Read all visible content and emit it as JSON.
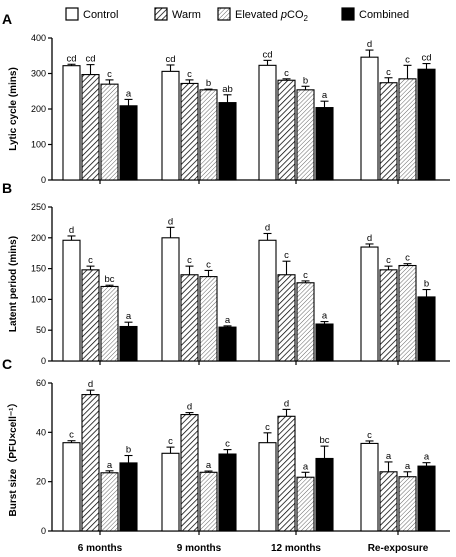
{
  "chart_data": [
    {
      "type": "bar",
      "panel": "A",
      "ylabel": "Lytic cycle (mins)",
      "ylim": [
        0,
        400
      ],
      "yticks": [
        "0",
        "100",
        "200",
        "300",
        "400"
      ],
      "categories": [
        "6 months",
        "9 months",
        "12 months",
        "Re-exposure"
      ],
      "series": [
        {
          "name": "Control",
          "values": [
            322,
            306,
            323,
            346
          ],
          "errors": [
            4,
            18,
            14,
            20
          ],
          "letters": [
            "cd",
            "cd",
            "cd",
            "d"
          ]
        },
        {
          "name": "Warm",
          "values": [
            297,
            272,
            281,
            274
          ],
          "errors": [
            28,
            10,
            4,
            14
          ],
          "letters": [
            "cd",
            "c",
            "c",
            "c"
          ]
        },
        {
          "name": "Elevated pCO2",
          "values": [
            270,
            254,
            254,
            285
          ],
          "errors": [
            12,
            2,
            10,
            38
          ],
          "letters": [
            "c",
            "b",
            "b",
            "c"
          ]
        },
        {
          "name": "Combined",
          "values": [
            209,
            218,
            204,
            312
          ],
          "errors": [
            18,
            22,
            18,
            16
          ],
          "letters": [
            "a",
            "ab",
            "a",
            "cd"
          ]
        }
      ]
    },
    {
      "type": "bar",
      "panel": "B",
      "ylabel": "Latent period (mins)",
      "ylim": [
        0,
        250
      ],
      "yticks": [
        "0",
        "50",
        "100",
        "150",
        "200",
        "250"
      ],
      "categories": [
        "6 months",
        "9 months",
        "12 months",
        "Re-exposure"
      ],
      "series": [
        {
          "name": "Control",
          "values": [
            196,
            200,
            196,
            185
          ],
          "errors": [
            7,
            17,
            11,
            5
          ],
          "letters": [
            "d",
            "d",
            "d",
            "d"
          ]
        },
        {
          "name": "Warm",
          "values": [
            148,
            140,
            140,
            148
          ],
          "errors": [
            6,
            14,
            22,
            6
          ],
          "letters": [
            "c",
            "c",
            "c",
            "c"
          ]
        },
        {
          "name": "Elevated pCO2",
          "values": [
            121,
            137,
            127,
            155
          ],
          "errors": [
            2,
            10,
            3,
            3
          ],
          "letters": [
            "bc",
            "c",
            "c",
            "c"
          ]
        },
        {
          "name": "Combined",
          "values": [
            56,
            55,
            60,
            104
          ],
          "errors": [
            7,
            2,
            4,
            12
          ],
          "letters": [
            "a",
            "a",
            "a",
            "b"
          ]
        }
      ]
    },
    {
      "type": "bar",
      "panel": "C",
      "ylabel": "Burst size（PFU×cell⁻¹）",
      "ylim": [
        0,
        60
      ],
      "yticks": [
        "0",
        "20",
        "40",
        "60"
      ],
      "categories": [
        "6 months",
        "9 months",
        "12 months",
        "Re-exposure"
      ],
      "series": [
        {
          "name": "Control",
          "values": [
            35.8,
            31.5,
            35.8,
            35.5
          ],
          "errors": [
            0.8,
            2.5,
            4,
            1
          ],
          "letters": [
            "c",
            "c",
            "c",
            "c"
          ]
        },
        {
          "name": "Warm",
          "values": [
            55.3,
            47.2,
            46.5,
            24
          ],
          "errors": [
            1.8,
            0.8,
            2.8,
            4
          ],
          "letters": [
            "d",
            "d",
            "d",
            "a"
          ]
        },
        {
          "name": "Elevated pCO2",
          "values": [
            23.6,
            23.8,
            21.8,
            22
          ],
          "errors": [
            0.8,
            0.5,
            2,
            2
          ],
          "letters": [
            "a",
            "a",
            "a",
            "a"
          ]
        },
        {
          "name": "Combined",
          "values": [
            27.6,
            31.2,
            29.4,
            26.3
          ],
          "errors": [
            3,
            1.8,
            5,
            1.4
          ],
          "letters": [
            "b",
            "c",
            "bc",
            "a"
          ]
        }
      ]
    }
  ],
  "legend": {
    "items": [
      "Control",
      "Warm",
      "Elevated pCO2",
      "Combined"
    ],
    "placement": "top"
  },
  "colors": {
    "control": "#ffffff",
    "warm": "hatched",
    "elevated_pco2": "hatched-light",
    "combined": "#000000",
    "axis": "#000000"
  }
}
